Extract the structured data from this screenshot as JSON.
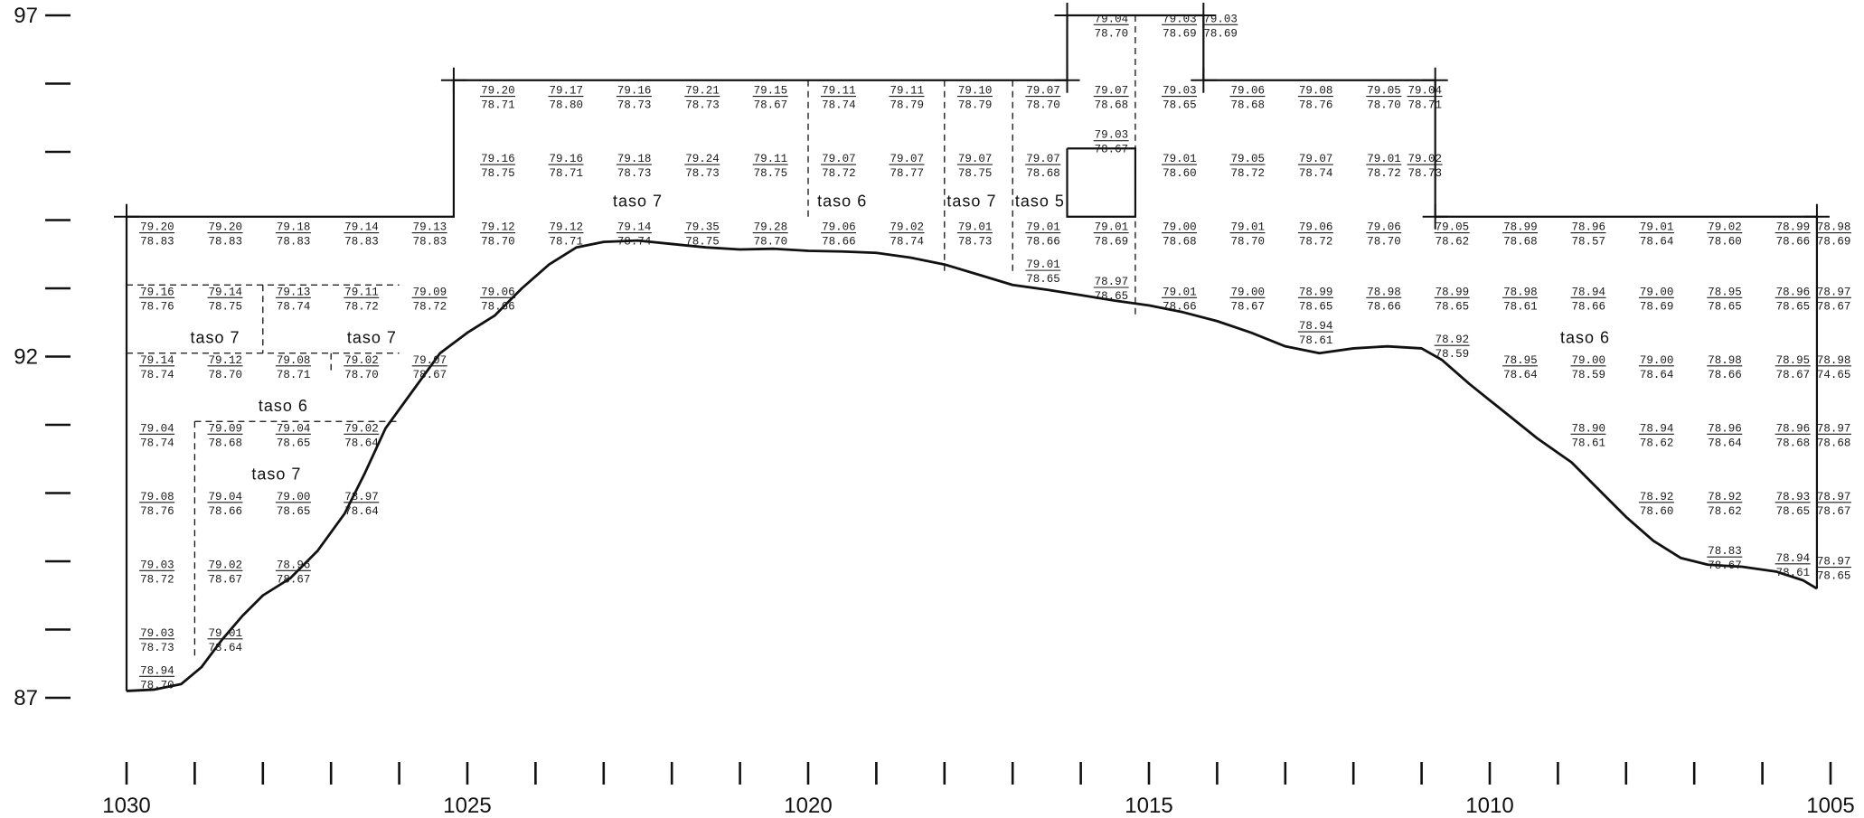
{
  "axes": {
    "y_labels": [
      {
        "text": "97",
        "value": 97
      },
      {
        "text": "92",
        "value": 92
      },
      {
        "text": "87",
        "value": 87
      }
    ],
    "y_major_ticks": [
      97,
      96,
      95,
      94,
      93,
      92,
      91,
      90,
      89,
      88,
      87
    ],
    "x_labels": [
      {
        "text": "1030",
        "value": 1030
      },
      {
        "text": "1025",
        "value": 1025
      },
      {
        "text": "1020",
        "value": 1020
      },
      {
        "text": "1015",
        "value": 1015
      },
      {
        "text": "1010",
        "value": 1010
      },
      {
        "text": "1005",
        "value": 1005
      }
    ],
    "x_ticks": [
      1030,
      1029,
      1028,
      1027,
      1026,
      1025,
      1024,
      1023,
      1022,
      1021,
      1020,
      1019,
      1018,
      1017,
      1016,
      1015,
      1014,
      1013,
      1012,
      1011,
      1010,
      1009,
      1008,
      1007,
      1006,
      1005
    ],
    "x_range": [
      1030,
      1005
    ],
    "y_range": [
      87,
      97
    ]
  },
  "layer_labels": [
    {
      "text": "taso 7",
      "x": 1028.7,
      "y": 92.2
    },
    {
      "text": "taso 7",
      "x": 1026.4,
      "y": 92.2
    },
    {
      "text": "taso 6",
      "x": 1027.7,
      "y": 91.2
    },
    {
      "text": "taso 7",
      "x": 1027.8,
      "y": 90.2
    },
    {
      "text": "taso 7",
      "x": 1022.5,
      "y": 94.2
    },
    {
      "text": "taso 6",
      "x": 1019.5,
      "y": 94.2
    },
    {
      "text": "taso 7",
      "x": 1017.6,
      "y": 94.2
    },
    {
      "text": "taso 5",
      "x": 1016.6,
      "y": 94.2
    },
    {
      "text": "taso 6",
      "x": 1008.6,
      "y": 92.2
    }
  ],
  "levels": [
    {
      "x": 1029.8,
      "y": 93.8,
      "top": "79.20",
      "bottom": "78.83"
    },
    {
      "x": 1028.8,
      "y": 93.8,
      "top": "79.20",
      "bottom": "78.83"
    },
    {
      "x": 1027.8,
      "y": 93.8,
      "top": "79.18",
      "bottom": "78.83"
    },
    {
      "x": 1026.8,
      "y": 93.8,
      "top": "79.14",
      "bottom": "78.83"
    },
    {
      "x": 1025.8,
      "y": 93.8,
      "top": "79.13",
      "bottom": "78.83"
    },
    {
      "x": 1029.8,
      "y": 92.85,
      "top": "79.16",
      "bottom": "78.76"
    },
    {
      "x": 1028.8,
      "y": 92.85,
      "top": "79.14",
      "bottom": "78.75"
    },
    {
      "x": 1027.8,
      "y": 92.85,
      "top": "79.13",
      "bottom": "78.74"
    },
    {
      "x": 1026.8,
      "y": 92.85,
      "top": "79.11",
      "bottom": "78.72"
    },
    {
      "x": 1025.8,
      "y": 92.85,
      "top": "79.09",
      "bottom": "78.72"
    },
    {
      "x": 1029.8,
      "y": 91.85,
      "top": "79.14",
      "bottom": "78.74"
    },
    {
      "x": 1028.8,
      "y": 91.85,
      "top": "79.12",
      "bottom": "78.70"
    },
    {
      "x": 1027.8,
      "y": 91.85,
      "top": "79.08",
      "bottom": "78.71"
    },
    {
      "x": 1026.8,
      "y": 91.85,
      "top": "79.02",
      "bottom": "78.70"
    },
    {
      "x": 1025.8,
      "y": 91.85,
      "top": "79.07",
      "bottom": "78.67"
    },
    {
      "x": 1029.8,
      "y": 90.85,
      "top": "79.04",
      "bottom": "78.74"
    },
    {
      "x": 1028.8,
      "y": 90.85,
      "top": "79.09",
      "bottom": "78.68"
    },
    {
      "x": 1027.8,
      "y": 90.85,
      "top": "79.04",
      "bottom": "78.65"
    },
    {
      "x": 1026.8,
      "y": 90.85,
      "top": "79.02",
      "bottom": "78.64"
    },
    {
      "x": 1029.8,
      "y": 89.85,
      "top": "79.08",
      "bottom": "78.76"
    },
    {
      "x": 1028.8,
      "y": 89.85,
      "top": "79.04",
      "bottom": "78.66"
    },
    {
      "x": 1027.8,
      "y": 89.85,
      "top": "79.00",
      "bottom": "78.65"
    },
    {
      "x": 1026.8,
      "y": 89.85,
      "top": "78.97",
      "bottom": "78.64"
    },
    {
      "x": 1029.8,
      "y": 88.85,
      "top": "79.03",
      "bottom": "78.72"
    },
    {
      "x": 1028.8,
      "y": 88.85,
      "top": "79.02",
      "bottom": "78.67"
    },
    {
      "x": 1027.8,
      "y": 88.85,
      "top": "78.96",
      "bottom": "78.67"
    },
    {
      "x": 1029.8,
      "y": 87.85,
      "top": "79.03",
      "bottom": "78.73"
    },
    {
      "x": 1028.8,
      "y": 87.85,
      "top": "79.01",
      "bottom": "78.64"
    },
    {
      "x": 1029.8,
      "y": 87.3,
      "top": "78.94",
      "bottom": "78.70"
    },
    {
      "x": 1024.8,
      "y": 95.8,
      "top": "79.20",
      "bottom": "78.71"
    },
    {
      "x": 1023.8,
      "y": 95.8,
      "top": "79.17",
      "bottom": "78.80"
    },
    {
      "x": 1022.8,
      "y": 95.8,
      "top": "79.16",
      "bottom": "78.73"
    },
    {
      "x": 1021.8,
      "y": 95.8,
      "top": "79.21",
      "bottom": "78.73"
    },
    {
      "x": 1020.8,
      "y": 95.8,
      "top": "79.15",
      "bottom": "78.67"
    },
    {
      "x": 1019.8,
      "y": 95.8,
      "top": "79.11",
      "bottom": "78.74"
    },
    {
      "x": 1018.8,
      "y": 95.8,
      "top": "79.11",
      "bottom": "78.79"
    },
    {
      "x": 1017.8,
      "y": 95.8,
      "top": "79.10",
      "bottom": "78.79"
    },
    {
      "x": 1016.8,
      "y": 95.8,
      "top": "79.07",
      "bottom": "78.70"
    },
    {
      "x": 1024.8,
      "y": 94.8,
      "top": "79.16",
      "bottom": "78.75"
    },
    {
      "x": 1023.8,
      "y": 94.8,
      "top": "79.16",
      "bottom": "78.71"
    },
    {
      "x": 1022.8,
      "y": 94.8,
      "top": "79.18",
      "bottom": "78.73"
    },
    {
      "x": 1021.8,
      "y": 94.8,
      "top": "79.24",
      "bottom": "78.73"
    },
    {
      "x": 1020.8,
      "y": 94.8,
      "top": "79.11",
      "bottom": "78.75"
    },
    {
      "x": 1019.8,
      "y": 94.8,
      "top": "79.07",
      "bottom": "78.72"
    },
    {
      "x": 1018.8,
      "y": 94.8,
      "top": "79.07",
      "bottom": "78.77"
    },
    {
      "x": 1017.8,
      "y": 94.8,
      "top": "79.07",
      "bottom": "78.75"
    },
    {
      "x": 1016.8,
      "y": 94.8,
      "top": "79.07",
      "bottom": "78.68"
    },
    {
      "x": 1024.8,
      "y": 93.8,
      "top": "79.12",
      "bottom": "78.70"
    },
    {
      "x": 1023.8,
      "y": 93.8,
      "top": "79.12",
      "bottom": "78.71"
    },
    {
      "x": 1022.8,
      "y": 93.8,
      "top": "79.14",
      "bottom": "78.74"
    },
    {
      "x": 1021.8,
      "y": 93.8,
      "top": "79.35",
      "bottom": "78.75"
    },
    {
      "x": 1020.8,
      "y": 93.8,
      "top": "79.28",
      "bottom": "78.70"
    },
    {
      "x": 1019.8,
      "y": 93.8,
      "top": "79.06",
      "bottom": "78.66"
    },
    {
      "x": 1018.8,
      "y": 93.8,
      "top": "79.02",
      "bottom": "78.74"
    },
    {
      "x": 1017.8,
      "y": 93.8,
      "top": "79.01",
      "bottom": "78.73"
    },
    {
      "x": 1016.8,
      "y": 93.8,
      "top": "79.01",
      "bottom": "78.66"
    },
    {
      "x": 1016.8,
      "y": 93.25,
      "top": "79.01",
      "bottom": "78.65"
    },
    {
      "x": 1024.8,
      "y": 92.85,
      "top": "79.06",
      "bottom": "78.66"
    },
    {
      "x": 1015.8,
      "y": 96.85,
      "top": "79.04",
      "bottom": "78.70"
    },
    {
      "x": 1014.8,
      "y": 96.85,
      "top": "79.03",
      "bottom": "78.69"
    },
    {
      "x": 1014.2,
      "y": 96.85,
      "top": "79.03",
      "bottom": "78.69"
    },
    {
      "x": 1015.8,
      "y": 95.8,
      "top": "79.07",
      "bottom": "78.68"
    },
    {
      "x": 1014.8,
      "y": 95.8,
      "top": "79.03",
      "bottom": "78.65"
    },
    {
      "x": 1015.8,
      "y": 95.15,
      "top": "79.03",
      "bottom": "78.67"
    },
    {
      "x": 1014.8,
      "y": 94.8,
      "top": "79.01",
      "bottom": "78.60"
    },
    {
      "x": 1015.8,
      "y": 93.8,
      "top": "79.01",
      "bottom": "78.69"
    },
    {
      "x": 1014.8,
      "y": 93.8,
      "top": "79.00",
      "bottom": "78.68"
    },
    {
      "x": 1015.8,
      "y": 93.0,
      "top": "78.97",
      "bottom": "78.65"
    },
    {
      "x": 1014.8,
      "y": 92.85,
      "top": "79.01",
      "bottom": "78.66"
    },
    {
      "x": 1013.8,
      "y": 95.8,
      "top": "79.06",
      "bottom": "78.68"
    },
    {
      "x": 1012.8,
      "y": 95.8,
      "top": "79.08",
      "bottom": "78.76"
    },
    {
      "x": 1011.8,
      "y": 95.8,
      "top": "79.05",
      "bottom": "78.70"
    },
    {
      "x": 1011.2,
      "y": 95.8,
      "top": "79.04",
      "bottom": "78.71"
    },
    {
      "x": 1013.8,
      "y": 94.8,
      "top": "79.05",
      "bottom": "78.72"
    },
    {
      "x": 1012.8,
      "y": 94.8,
      "top": "79.07",
      "bottom": "78.74"
    },
    {
      "x": 1011.8,
      "y": 94.8,
      "top": "79.01",
      "bottom": "78.72"
    },
    {
      "x": 1011.2,
      "y": 94.8,
      "top": "79.02",
      "bottom": "78.73"
    },
    {
      "x": 1013.8,
      "y": 93.8,
      "top": "79.01",
      "bottom": "78.70"
    },
    {
      "x": 1012.8,
      "y": 93.8,
      "top": "79.06",
      "bottom": "78.72"
    },
    {
      "x": 1011.8,
      "y": 93.8,
      "top": "79.06",
      "bottom": "78.70"
    },
    {
      "x": 1013.8,
      "y": 92.85,
      "top": "79.00",
      "bottom": "78.67"
    },
    {
      "x": 1012.8,
      "y": 92.85,
      "top": "78.99",
      "bottom": "78.65"
    },
    {
      "x": 1011.8,
      "y": 92.85,
      "top": "78.98",
      "bottom": "78.66"
    },
    {
      "x": 1012.8,
      "y": 92.35,
      "top": "78.94",
      "bottom": "78.61"
    },
    {
      "x": 1010.8,
      "y": 93.8,
      "top": "79.05",
      "bottom": "78.62"
    },
    {
      "x": 1009.8,
      "y": 93.8,
      "top": "78.99",
      "bottom": "78.68"
    },
    {
      "x": 1008.8,
      "y": 93.8,
      "top": "78.96",
      "bottom": "78.57"
    },
    {
      "x": 1007.8,
      "y": 93.8,
      "top": "79.01",
      "bottom": "78.64"
    },
    {
      "x": 1006.8,
      "y": 93.8,
      "top": "79.02",
      "bottom": "78.60"
    },
    {
      "x": 1005.8,
      "y": 93.8,
      "top": "78.99",
      "bottom": "78.66"
    },
    {
      "x": 1005.2,
      "y": 93.8,
      "top": "78.98",
      "bottom": "78.69"
    },
    {
      "x": 1010.8,
      "y": 92.85,
      "top": "78.99",
      "bottom": "78.65"
    },
    {
      "x": 1009.8,
      "y": 92.85,
      "top": "78.98",
      "bottom": "78.61"
    },
    {
      "x": 1008.8,
      "y": 92.85,
      "top": "78.94",
      "bottom": "78.66"
    },
    {
      "x": 1007.8,
      "y": 92.85,
      "top": "79.00",
      "bottom": "78.69"
    },
    {
      "x": 1006.8,
      "y": 92.85,
      "top": "78.95",
      "bottom": "78.65"
    },
    {
      "x": 1005.8,
      "y": 92.85,
      "top": "78.96",
      "bottom": "78.65"
    },
    {
      "x": 1005.2,
      "y": 92.85,
      "top": "78.97",
      "bottom": "78.67"
    },
    {
      "x": 1010.8,
      "y": 92.15,
      "top": "78.92",
      "bottom": "78.59"
    },
    {
      "x": 1009.8,
      "y": 91.85,
      "top": "78.95",
      "bottom": "78.64"
    },
    {
      "x": 1008.8,
      "y": 91.85,
      "top": "79.00",
      "bottom": "78.59"
    },
    {
      "x": 1007.8,
      "y": 91.85,
      "top": "79.00",
      "bottom": "78.64"
    },
    {
      "x": 1006.8,
      "y": 91.85,
      "top": "78.98",
      "bottom": "78.66"
    },
    {
      "x": 1005.8,
      "y": 91.85,
      "top": "78.95",
      "bottom": "78.67"
    },
    {
      "x": 1005.2,
      "y": 91.85,
      "top": "78.98",
      "bottom": "74.65"
    },
    {
      "x": 1008.8,
      "y": 90.85,
      "top": "78.90",
      "bottom": "78.61"
    },
    {
      "x": 1007.8,
      "y": 90.85,
      "top": "78.94",
      "bottom": "78.62"
    },
    {
      "x": 1006.8,
      "y": 90.85,
      "top": "78.96",
      "bottom": "78.64"
    },
    {
      "x": 1005.8,
      "y": 90.85,
      "top": "78.96",
      "bottom": "78.68"
    },
    {
      "x": 1005.2,
      "y": 90.85,
      "top": "78.97",
      "bottom": "78.68"
    },
    {
      "x": 1007.8,
      "y": 89.85,
      "top": "78.92",
      "bottom": "78.60"
    },
    {
      "x": 1006.8,
      "y": 89.85,
      "top": "78.92",
      "bottom": "78.62"
    },
    {
      "x": 1005.8,
      "y": 89.85,
      "top": "78.93",
      "bottom": "78.65"
    },
    {
      "x": 1005.2,
      "y": 89.85,
      "top": "78.97",
      "bottom": "78.67"
    },
    {
      "x": 1006.8,
      "y": 89.05,
      "top": "78.83",
      "bottom": "78.67"
    },
    {
      "x": 1005.8,
      "y": 88.95,
      "top": "78.94",
      "bottom": "78.61"
    },
    {
      "x": 1005.2,
      "y": 88.9,
      "top": "78.97",
      "bottom": "78.65"
    }
  ],
  "outline_solid": [
    [
      [
        1030,
        87.1
      ],
      [
        1030,
        94.05
      ],
      [
        1025.2,
        94.05
      ],
      [
        1025.2,
        96.05
      ],
      [
        1016.2,
        96.05
      ],
      [
        1016.2,
        97.0
      ],
      [
        1014.2,
        97.0
      ],
      [
        1014.2,
        96.05
      ],
      [
        1010.8,
        96.05
      ],
      [
        1010.8,
        94.05
      ],
      [
        1005.2,
        94.05
      ],
      [
        1005.2,
        88.6
      ]
    ],
    [
      [
        1016.2,
        95.05
      ],
      [
        1015.2,
        95.05
      ],
      [
        1015.2,
        94.05
      ],
      [
        1016.2,
        94.05
      ],
      [
        1016.2,
        95.05
      ]
    ]
  ],
  "outline_dashed": [
    [
      [
        1030,
        93.05
      ],
      [
        1026.0,
        93.05
      ]
    ],
    [
      [
        1030,
        92.05
      ],
      [
        1026.0,
        92.05
      ]
    ],
    [
      [
        1028.0,
        93.05
      ],
      [
        1028.0,
        92.05
      ]
    ],
    [
      [
        1027.0,
        92.05
      ],
      [
        1027.0,
        91.8
      ]
    ],
    [
      [
        1029.0,
        91.05
      ],
      [
        1026.0,
        91.05
      ]
    ],
    [
      [
        1029.0,
        91.05
      ],
      [
        1029.0,
        87.6
      ]
    ],
    [
      [
        1020.0,
        96.05
      ],
      [
        1020.0,
        94.05
      ]
    ],
    [
      [
        1018.0,
        96.05
      ],
      [
        1018.0,
        93.2
      ]
    ],
    [
      [
        1017.0,
        96.05
      ],
      [
        1017.0,
        93.2
      ]
    ],
    [
      [
        1015.2,
        96.05
      ],
      [
        1015.2,
        92.6
      ]
    ],
    [
      [
        1016.2,
        97.0
      ],
      [
        1016.2,
        96.05
      ]
    ],
    [
      [
        1015.2,
        97.0
      ],
      [
        1015.2,
        96.05
      ]
    ]
  ],
  "profile": [
    [
      1030,
      87.1
    ],
    [
      1029.6,
      87.12
    ],
    [
      1029.2,
      87.2
    ],
    [
      1028.9,
      87.45
    ],
    [
      1028.6,
      87.85
    ],
    [
      1028.3,
      88.2
    ],
    [
      1028.0,
      88.5
    ],
    [
      1027.6,
      88.75
    ],
    [
      1027.2,
      89.15
    ],
    [
      1026.8,
      89.7
    ],
    [
      1026.5,
      90.3
    ],
    [
      1026.2,
      90.95
    ],
    [
      1025.8,
      91.5
    ],
    [
      1025.4,
      92.05
    ],
    [
      1025.0,
      92.35
    ],
    [
      1024.6,
      92.6
    ],
    [
      1024.2,
      93.0
    ],
    [
      1023.8,
      93.35
    ],
    [
      1023.4,
      93.6
    ],
    [
      1023.0,
      93.68
    ],
    [
      1022.5,
      93.7
    ],
    [
      1022.0,
      93.65
    ],
    [
      1021.5,
      93.6
    ],
    [
      1021.0,
      93.57
    ],
    [
      1020.5,
      93.58
    ],
    [
      1020.0,
      93.55
    ],
    [
      1019.5,
      93.54
    ],
    [
      1019.0,
      93.52
    ],
    [
      1018.5,
      93.45
    ],
    [
      1018.0,
      93.35
    ],
    [
      1017.5,
      93.2
    ],
    [
      1017.0,
      93.05
    ],
    [
      1016.5,
      92.98
    ],
    [
      1016.0,
      92.9
    ],
    [
      1015.5,
      92.82
    ],
    [
      1015.0,
      92.75
    ],
    [
      1014.5,
      92.65
    ],
    [
      1014.0,
      92.52
    ],
    [
      1013.5,
      92.35
    ],
    [
      1013.0,
      92.15
    ],
    [
      1012.5,
      92.05
    ],
    [
      1012.0,
      92.12
    ],
    [
      1011.5,
      92.15
    ],
    [
      1011.0,
      92.12
    ],
    [
      1010.7,
      91.95
    ],
    [
      1010.3,
      91.6
    ],
    [
      1009.8,
      91.2
    ],
    [
      1009.3,
      90.8
    ],
    [
      1008.8,
      90.45
    ],
    [
      1008.4,
      90.05
    ],
    [
      1008.0,
      89.65
    ],
    [
      1007.6,
      89.3
    ],
    [
      1007.2,
      89.05
    ],
    [
      1006.8,
      88.95
    ],
    [
      1006.3,
      88.92
    ],
    [
      1005.8,
      88.85
    ],
    [
      1005.4,
      88.72
    ],
    [
      1005.2,
      88.6
    ]
  ],
  "cross_marks": [
    [
      1030,
      94.05
    ],
    [
      1025.2,
      96.05
    ],
    [
      1016.2,
      97.0
    ],
    [
      1014.2,
      97.0
    ],
    [
      1016.2,
      96.05
    ],
    [
      1014.2,
      96.05
    ],
    [
      1010.8,
      96.05
    ],
    [
      1010.8,
      94.05
    ],
    [
      1005.2,
      94.05
    ]
  ]
}
